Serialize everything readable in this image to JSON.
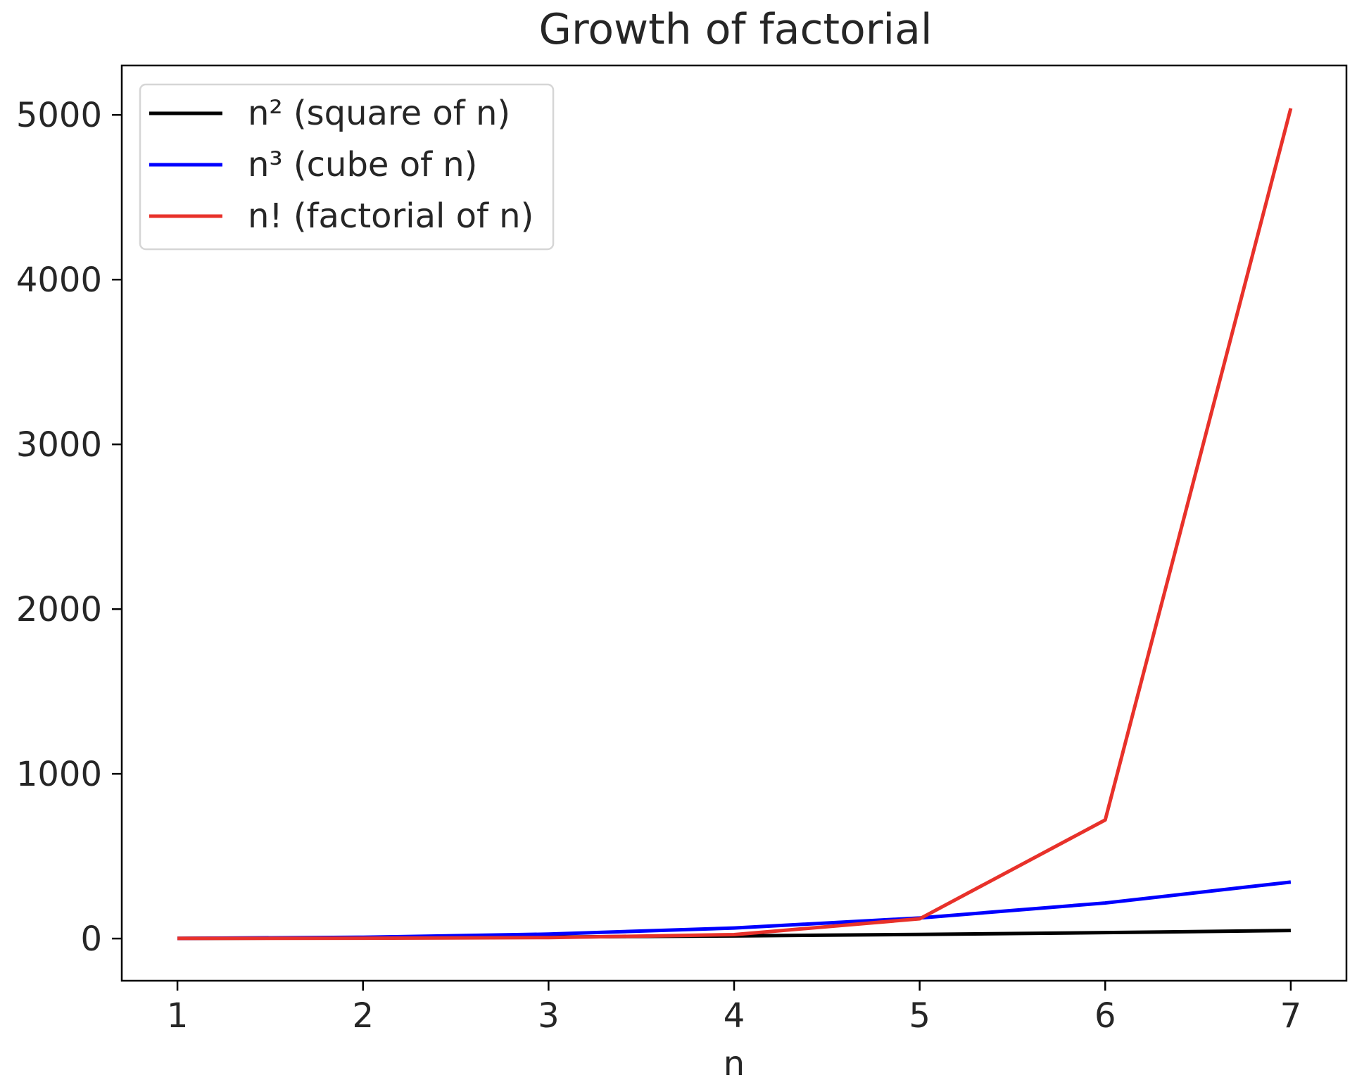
{
  "chart_data": {
    "type": "line",
    "title": "Growth of factorial",
    "xlabel": "n",
    "ylabel": "",
    "x": [
      1,
      2,
      3,
      4,
      5,
      6,
      7
    ],
    "xlim": [
      0.7,
      7.3
    ],
    "ylim": [
      -256,
      5300
    ],
    "xticks": [
      1,
      2,
      3,
      4,
      5,
      6,
      7
    ],
    "yticks": [
      0,
      1000,
      2000,
      3000,
      4000,
      5000
    ],
    "grid": false,
    "legend_position": "top-left",
    "series": [
      {
        "name": "n² (square of n)",
        "color": "#000000",
        "values": [
          1,
          4,
          9,
          16,
          25,
          36,
          49
        ]
      },
      {
        "name": "n³ (cube of n)",
        "color": "#0000ff",
        "values": [
          1,
          8,
          27,
          64,
          125,
          216,
          343
        ]
      },
      {
        "name": "n! (factorial of n)",
        "color": "#e8312a",
        "values": [
          1,
          2,
          6,
          24,
          120,
          720,
          5040
        ]
      }
    ]
  }
}
